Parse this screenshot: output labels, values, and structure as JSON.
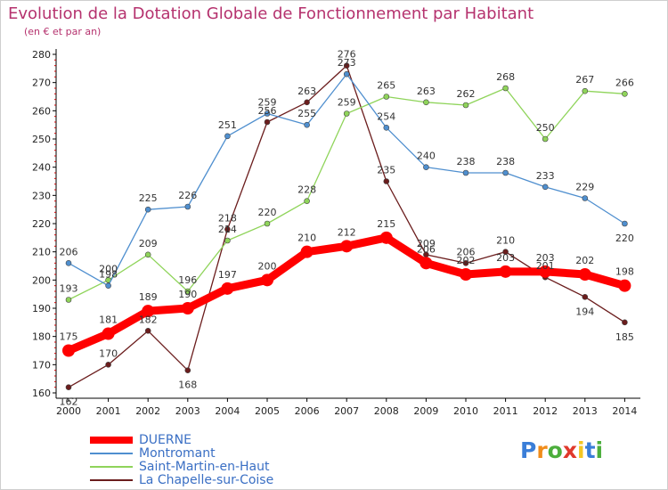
{
  "header": {
    "title": "Evolution de la Dotation Globale de Fonctionnement par Habitant",
    "subtitle": "(en € et par an)"
  },
  "logo": {
    "text": "Proxiti",
    "letters": [
      "P",
      "r",
      "o",
      "x",
      "i",
      "t",
      "i"
    ],
    "colors": [
      "#3a7ed8",
      "#f08c1a",
      "#4cae3c",
      "#e0392c",
      "#f3c623",
      "#3a7ed8",
      "#4cae3c"
    ]
  },
  "colors": {
    "text": "#b5326e",
    "axis": "#000000",
    "tick_red": "#cc0000"
  },
  "chart_data": {
    "type": "line",
    "title": "Evolution de la Dotation Globale de Fonctionnement par Habitant",
    "subtitle": "(en € et par an)",
    "xlabel": "",
    "ylabel": "",
    "x": [
      "2000",
      "2001",
      "2002",
      "2003",
      "2004",
      "2005",
      "2006",
      "2007",
      "2008",
      "2009",
      "2010",
      "2011",
      "2012",
      "2013",
      "2014"
    ],
    "ylim": [
      160,
      280
    ],
    "yticks": [
      160,
      170,
      180,
      190,
      200,
      210,
      220,
      230,
      240,
      250,
      260,
      270,
      280
    ],
    "grid": false,
    "legend_position": "bottom-left",
    "series": [
      {
        "name": "DUERNE",
        "color": "#ff0000",
        "values": [
          175,
          181,
          189,
          190,
          197,
          200,
          210,
          212,
          215,
          206,
          202,
          203,
          203,
          202,
          198
        ]
      },
      {
        "name": "Montromant",
        "color": "#4f8fcf",
        "values": [
          206,
          198,
          225,
          226,
          251,
          259,
          255,
          273,
          254,
          240,
          238,
          238,
          233,
          229,
          220
        ]
      },
      {
        "name": "Saint-Martin-en-Haut",
        "color": "#8fd45a",
        "values": [
          193,
          200,
          209,
          196,
          214,
          220,
          228,
          259,
          265,
          263,
          262,
          268,
          250,
          267,
          266
        ]
      },
      {
        "name": "La Chapelle-sur-Coise",
        "color": "#6b1d1d",
        "values": [
          162,
          170,
          182,
          168,
          218,
          256,
          263,
          276,
          235,
          209,
          206,
          210,
          201,
          194,
          185
        ]
      }
    ]
  }
}
